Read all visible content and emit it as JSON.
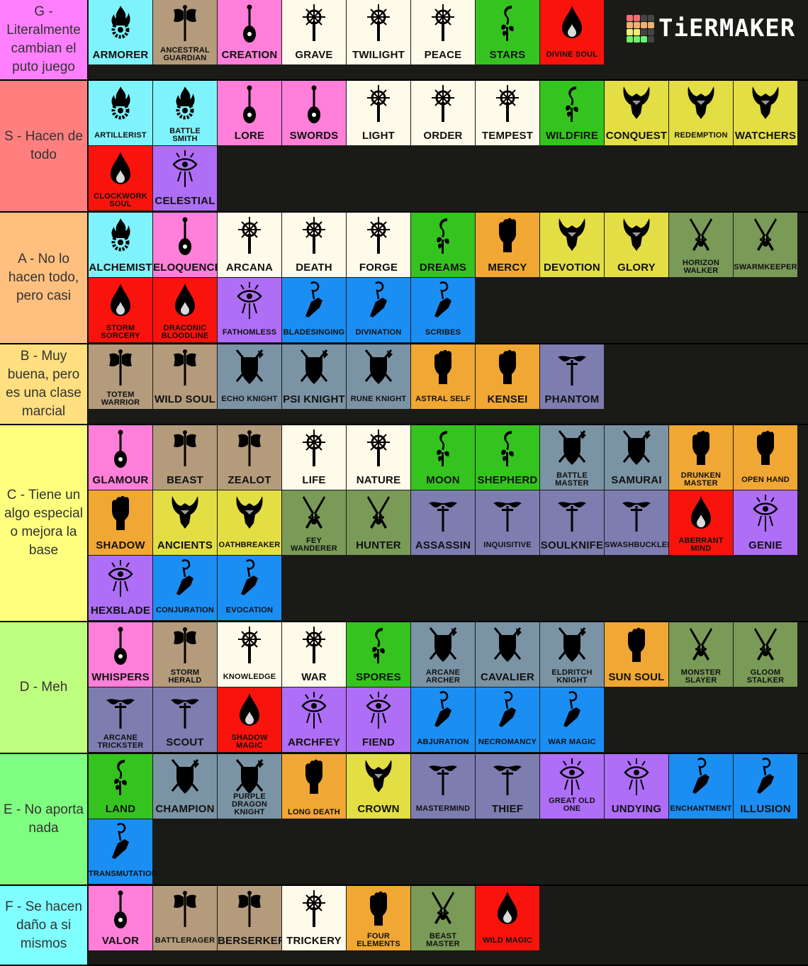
{
  "logo": {
    "text": "TiERMAKER",
    "cells": [
      "#f07070",
      "#f07070",
      "#444",
      "#444",
      "#f0b070",
      "#f0b070",
      "#f0b070",
      "#f0b070",
      "#f0f070",
      "#f0f070",
      "#444",
      "#444",
      "#70f070",
      "#70f070",
      "#70f070",
      "#444"
    ]
  },
  "classes": {
    "artificer": {
      "color": "#7ff3fb",
      "icon": "flame-gear-icon"
    },
    "barbarian": {
      "color": "#b49b7c",
      "icon": "battle-axe-icon"
    },
    "bard": {
      "color": "#ff7fd9",
      "icon": "lute-icon"
    },
    "cleric": {
      "color": "#fffbea",
      "icon": "holy-sun-icon"
    },
    "druid": {
      "color": "#35c41f",
      "icon": "sickle-leaf-icon"
    },
    "sorcerer": {
      "color": "#f8140c",
      "icon": "flame-drop-icon"
    },
    "paladin": {
      "color": "#e3de44",
      "icon": "horned-helm-icon"
    },
    "ranger": {
      "color": "#7a9a58",
      "icon": "crossed-blades-paw-icon"
    },
    "warlock": {
      "color": "#ae6ef6",
      "icon": "eldritch-eye-icon"
    },
    "wizard": {
      "color": "#1b8ef4",
      "icon": "wand-hand-icon"
    },
    "fighter": {
      "color": "#7b94a5",
      "icon": "shield-swords-icon"
    },
    "monk": {
      "color": "#f1a733",
      "icon": "fist-icon"
    },
    "rogue": {
      "color": "#7e7db0",
      "icon": "mask-dagger-icon"
    }
  },
  "tiers": [
    {
      "label": "G - Literalmente cambian el puto juego",
      "color": "#ff7fff",
      "items": [
        {
          "name": "ARMORER",
          "cls": "artificer"
        },
        {
          "name": "ANCESTRAL GUARDIAN",
          "cls": "barbarian",
          "size": "sm"
        },
        {
          "name": "CREATION",
          "cls": "bard"
        },
        {
          "name": "GRAVE",
          "cls": "cleric"
        },
        {
          "name": "TWILIGHT",
          "cls": "cleric"
        },
        {
          "name": "PEACE",
          "cls": "cleric"
        },
        {
          "name": "STARS",
          "cls": "druid"
        },
        {
          "name": "DIVINE SOUL",
          "cls": "sorcerer",
          "size": "xs"
        }
      ]
    },
    {
      "label": "S - Hacen de todo",
      "color": "#ff7f7f",
      "items": [
        {
          "name": "ARTILLERIST",
          "cls": "artificer",
          "size": "xs"
        },
        {
          "name": "BATTLE SMITH",
          "cls": "artificer",
          "size": "sm"
        },
        {
          "name": "LORE",
          "cls": "bard"
        },
        {
          "name": "SWORDS",
          "cls": "bard"
        },
        {
          "name": "LIGHT",
          "cls": "cleric"
        },
        {
          "name": "ORDER",
          "cls": "cleric"
        },
        {
          "name": "TEMPEST",
          "cls": "cleric"
        },
        {
          "name": "WILDFIRE",
          "cls": "druid"
        },
        {
          "name": "CONQUEST",
          "cls": "paladin"
        },
        {
          "name": "REDEMPTION",
          "cls": "paladin",
          "size": "xs"
        },
        {
          "name": "WATCHERS",
          "cls": "paladin"
        },
        {
          "name": "CLOCKWORK SOUL",
          "cls": "sorcerer",
          "size": "sm"
        },
        {
          "name": "CELESTIAL",
          "cls": "warlock"
        }
      ]
    },
    {
      "label": "A - No lo hacen todo, pero casi",
      "color": "#ffbf7f",
      "items": [
        {
          "name": "ALCHEMIST",
          "cls": "artificer"
        },
        {
          "name": "ELOQUENCE",
          "cls": "bard"
        },
        {
          "name": "ARCANA",
          "cls": "cleric"
        },
        {
          "name": "DEATH",
          "cls": "cleric"
        },
        {
          "name": "FORGE",
          "cls": "cleric"
        },
        {
          "name": "DREAMS",
          "cls": "druid"
        },
        {
          "name": "MERCY",
          "cls": "monk"
        },
        {
          "name": "DEVOTION",
          "cls": "paladin"
        },
        {
          "name": "GLORY",
          "cls": "paladin"
        },
        {
          "name": "HORIZON WALKER",
          "cls": "ranger",
          "size": "sm"
        },
        {
          "name": "SWARMKEEPER",
          "cls": "ranger",
          "size": "xs"
        },
        {
          "name": "STORM SORCERY",
          "cls": "sorcerer",
          "size": "sm"
        },
        {
          "name": "DRACONIC BLOODLINE",
          "cls": "sorcerer",
          "size": "sm"
        },
        {
          "name": "FATHOMLESS",
          "cls": "warlock",
          "size": "xs"
        },
        {
          "name": "BLADESINGING",
          "cls": "wizard",
          "size": "xs"
        },
        {
          "name": "DIVINATION",
          "cls": "wizard",
          "size": "xs"
        },
        {
          "name": "SCRIBES",
          "cls": "wizard",
          "size": "xs"
        }
      ]
    },
    {
      "label": "B - Muy buena, pero es una clase marcial",
      "color": "#ffdf7f",
      "items": [
        {
          "name": "TOTEM WARRIOR",
          "cls": "barbarian",
          "size": "sm"
        },
        {
          "name": "WILD SOUL",
          "cls": "barbarian"
        },
        {
          "name": "ECHO KNIGHT",
          "cls": "fighter",
          "size": "xs"
        },
        {
          "name": "PSI KNIGHT",
          "cls": "fighter"
        },
        {
          "name": "RUNE KNIGHT",
          "cls": "fighter",
          "size": "xs"
        },
        {
          "name": "ASTRAL SELF",
          "cls": "monk",
          "size": "xs"
        },
        {
          "name": "KENSEI",
          "cls": "monk"
        },
        {
          "name": "PHANTOM",
          "cls": "rogue"
        }
      ]
    },
    {
      "label": "C - Tiene un algo especial o mejora la base",
      "color": "#ffff7f",
      "items": [
        {
          "name": "GLAMOUR",
          "cls": "bard"
        },
        {
          "name": "BEAST",
          "cls": "barbarian"
        },
        {
          "name": "ZEALOT",
          "cls": "barbarian"
        },
        {
          "name": "LIFE",
          "cls": "cleric"
        },
        {
          "name": "NATURE",
          "cls": "cleric"
        },
        {
          "name": "MOON",
          "cls": "druid"
        },
        {
          "name": "SHEPHERD",
          "cls": "druid"
        },
        {
          "name": "BATTLE MASTER",
          "cls": "fighter",
          "size": "sm"
        },
        {
          "name": "SAMURAI",
          "cls": "fighter"
        },
        {
          "name": "DRUNKEN MASTER",
          "cls": "monk",
          "size": "sm"
        },
        {
          "name": "OPEN HAND",
          "cls": "monk",
          "size": "xs"
        },
        {
          "name": "SHADOW",
          "cls": "monk"
        },
        {
          "name": "ANCIENTS",
          "cls": "paladin"
        },
        {
          "name": "OATHBREAKER",
          "cls": "paladin",
          "size": "xs"
        },
        {
          "name": "FEY WANDERER",
          "cls": "ranger",
          "size": "sm"
        },
        {
          "name": "HUNTER",
          "cls": "ranger"
        },
        {
          "name": "ASSASSIN",
          "cls": "rogue"
        },
        {
          "name": "INQUISITIVE",
          "cls": "rogue",
          "size": "xs"
        },
        {
          "name": "SOULKNIFE",
          "cls": "rogue"
        },
        {
          "name": "SWASHBUCKLER",
          "cls": "rogue",
          "size": "xs"
        },
        {
          "name": "ABERRANT MIND",
          "cls": "sorcerer",
          "size": "sm"
        },
        {
          "name": "GENIE",
          "cls": "warlock"
        },
        {
          "name": "HEXBLADE",
          "cls": "warlock"
        },
        {
          "name": "CONJURATION",
          "cls": "wizard",
          "size": "xs"
        },
        {
          "name": "EVOCATION",
          "cls": "wizard",
          "size": "xs"
        }
      ]
    },
    {
      "label": "D - Meh",
      "color": "#bfff7f",
      "items": [
        {
          "name": "WHISPERS",
          "cls": "bard"
        },
        {
          "name": "STORM HERALD",
          "cls": "barbarian",
          "size": "sm"
        },
        {
          "name": "KNOWLEDGE",
          "cls": "cleric",
          "size": "xs"
        },
        {
          "name": "WAR",
          "cls": "cleric"
        },
        {
          "name": "SPORES",
          "cls": "druid"
        },
        {
          "name": "ARCANE ARCHER",
          "cls": "fighter",
          "size": "sm"
        },
        {
          "name": "CAVALIER",
          "cls": "fighter"
        },
        {
          "name": "ELDRITCH KNIGHT",
          "cls": "fighter",
          "size": "sm"
        },
        {
          "name": "SUN SOUL",
          "cls": "monk"
        },
        {
          "name": "MONSTER SLAYER",
          "cls": "ranger",
          "size": "sm"
        },
        {
          "name": "GLOOM STALKER",
          "cls": "ranger",
          "size": "sm"
        },
        {
          "name": "ARCANE TRICKSTER",
          "cls": "rogue",
          "size": "sm"
        },
        {
          "name": "SCOUT",
          "cls": "rogue"
        },
        {
          "name": "SHADOW MAGIC",
          "cls": "sorcerer",
          "size": "sm"
        },
        {
          "name": "ARCHFEY",
          "cls": "warlock"
        },
        {
          "name": "FIEND",
          "cls": "warlock"
        },
        {
          "name": "ABJURATION",
          "cls": "wizard",
          "size": "xs"
        },
        {
          "name": "NECROMANCY",
          "cls": "wizard",
          "size": "xs"
        },
        {
          "name": "WAR MAGIC",
          "cls": "wizard",
          "size": "xs"
        }
      ]
    },
    {
      "label": "E - No aporta nada",
      "color": "#7fff7f",
      "items": [
        {
          "name": "LAND",
          "cls": "druid"
        },
        {
          "name": "CHAMPION",
          "cls": "fighter"
        },
        {
          "name": "PURPLE DRAGON KNIGHT",
          "cls": "fighter",
          "size": "sm"
        },
        {
          "name": "LONG DEATH",
          "cls": "monk",
          "size": "sm"
        },
        {
          "name": "CROWN",
          "cls": "paladin"
        },
        {
          "name": "MASTERMIND",
          "cls": "rogue",
          "size": "xs"
        },
        {
          "name": "THIEF",
          "cls": "rogue"
        },
        {
          "name": "GREAT OLD ONE",
          "cls": "warlock",
          "size": "xs"
        },
        {
          "name": "UNDYING",
          "cls": "warlock"
        },
        {
          "name": "ENCHANTMENT",
          "cls": "wizard",
          "size": "xs"
        },
        {
          "name": "ILLUSION",
          "cls": "wizard"
        },
        {
          "name": "TRANSMUTATION",
          "cls": "wizard",
          "size": "xs"
        }
      ]
    },
    {
      "label": "F - Se hacen daño a si mismos",
      "color": "#7fffff",
      "items": [
        {
          "name": "VALOR",
          "cls": "bard"
        },
        {
          "name": "BATTLERAGER",
          "cls": "barbarian",
          "size": "xs"
        },
        {
          "name": "BERSERKER",
          "cls": "barbarian"
        },
        {
          "name": "TRICKERY",
          "cls": "cleric"
        },
        {
          "name": "FOUR ELEMENTS",
          "cls": "monk",
          "size": "sm"
        },
        {
          "name": "BEAST MASTER",
          "cls": "ranger",
          "size": "sm"
        },
        {
          "name": "WILD MAGIC",
          "cls": "sorcerer",
          "size": "xs"
        }
      ]
    }
  ]
}
